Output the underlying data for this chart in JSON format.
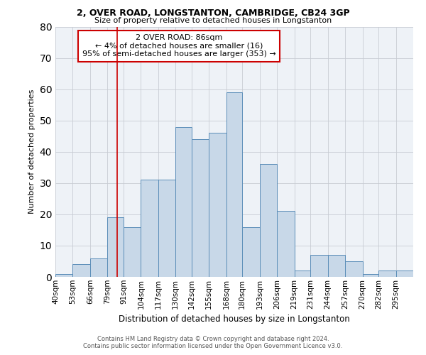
{
  "title_line1": "2, OVER ROAD, LONGSTANTON, CAMBRIDGE, CB24 3GP",
  "title_line2": "Size of property relative to detached houses in Longstanton",
  "xlabel": "Distribution of detached houses by size in Longstanton",
  "ylabel": "Number of detached properties",
  "bar_labels": [
    "40sqm",
    "53sqm",
    "66sqm",
    "79sqm",
    "91sqm",
    "104sqm",
    "117sqm",
    "130sqm",
    "142sqm",
    "155sqm",
    "168sqm",
    "180sqm",
    "193sqm",
    "206sqm",
    "219sqm",
    "231sqm",
    "244sqm",
    "257sqm",
    "270sqm",
    "282sqm",
    "295sqm"
  ],
  "bar_heights": [
    1,
    4,
    6,
    19,
    16,
    31,
    31,
    48,
    44,
    46,
    59,
    16,
    36,
    21,
    2,
    7,
    7,
    5,
    1,
    2,
    2
  ],
  "bar_edges": [
    40,
    53,
    66,
    79,
    91,
    104,
    117,
    130,
    142,
    155,
    168,
    180,
    193,
    206,
    219,
    231,
    244,
    257,
    270,
    282,
    295,
    308
  ],
  "bar_color": "#c8d8e8",
  "bar_edgecolor": "#5b8db8",
  "vline_x": 86,
  "vline_color": "#cc0000",
  "annotation_line1": "2 OVER ROAD: 86sqm",
  "annotation_line2": "← 4% of detached houses are smaller (16)",
  "annotation_line3": "95% of semi-detached houses are larger (353) →",
  "ylim": [
    0,
    80
  ],
  "yticks": [
    0,
    10,
    20,
    30,
    40,
    50,
    60,
    70,
    80
  ],
  "grid_color": "#c8ccd4",
  "background_color": "#eef2f7",
  "footer_line1": "Contains HM Land Registry data © Crown copyright and database right 2024.",
  "footer_line2": "Contains public sector information licensed under the Open Government Licence v3.0."
}
